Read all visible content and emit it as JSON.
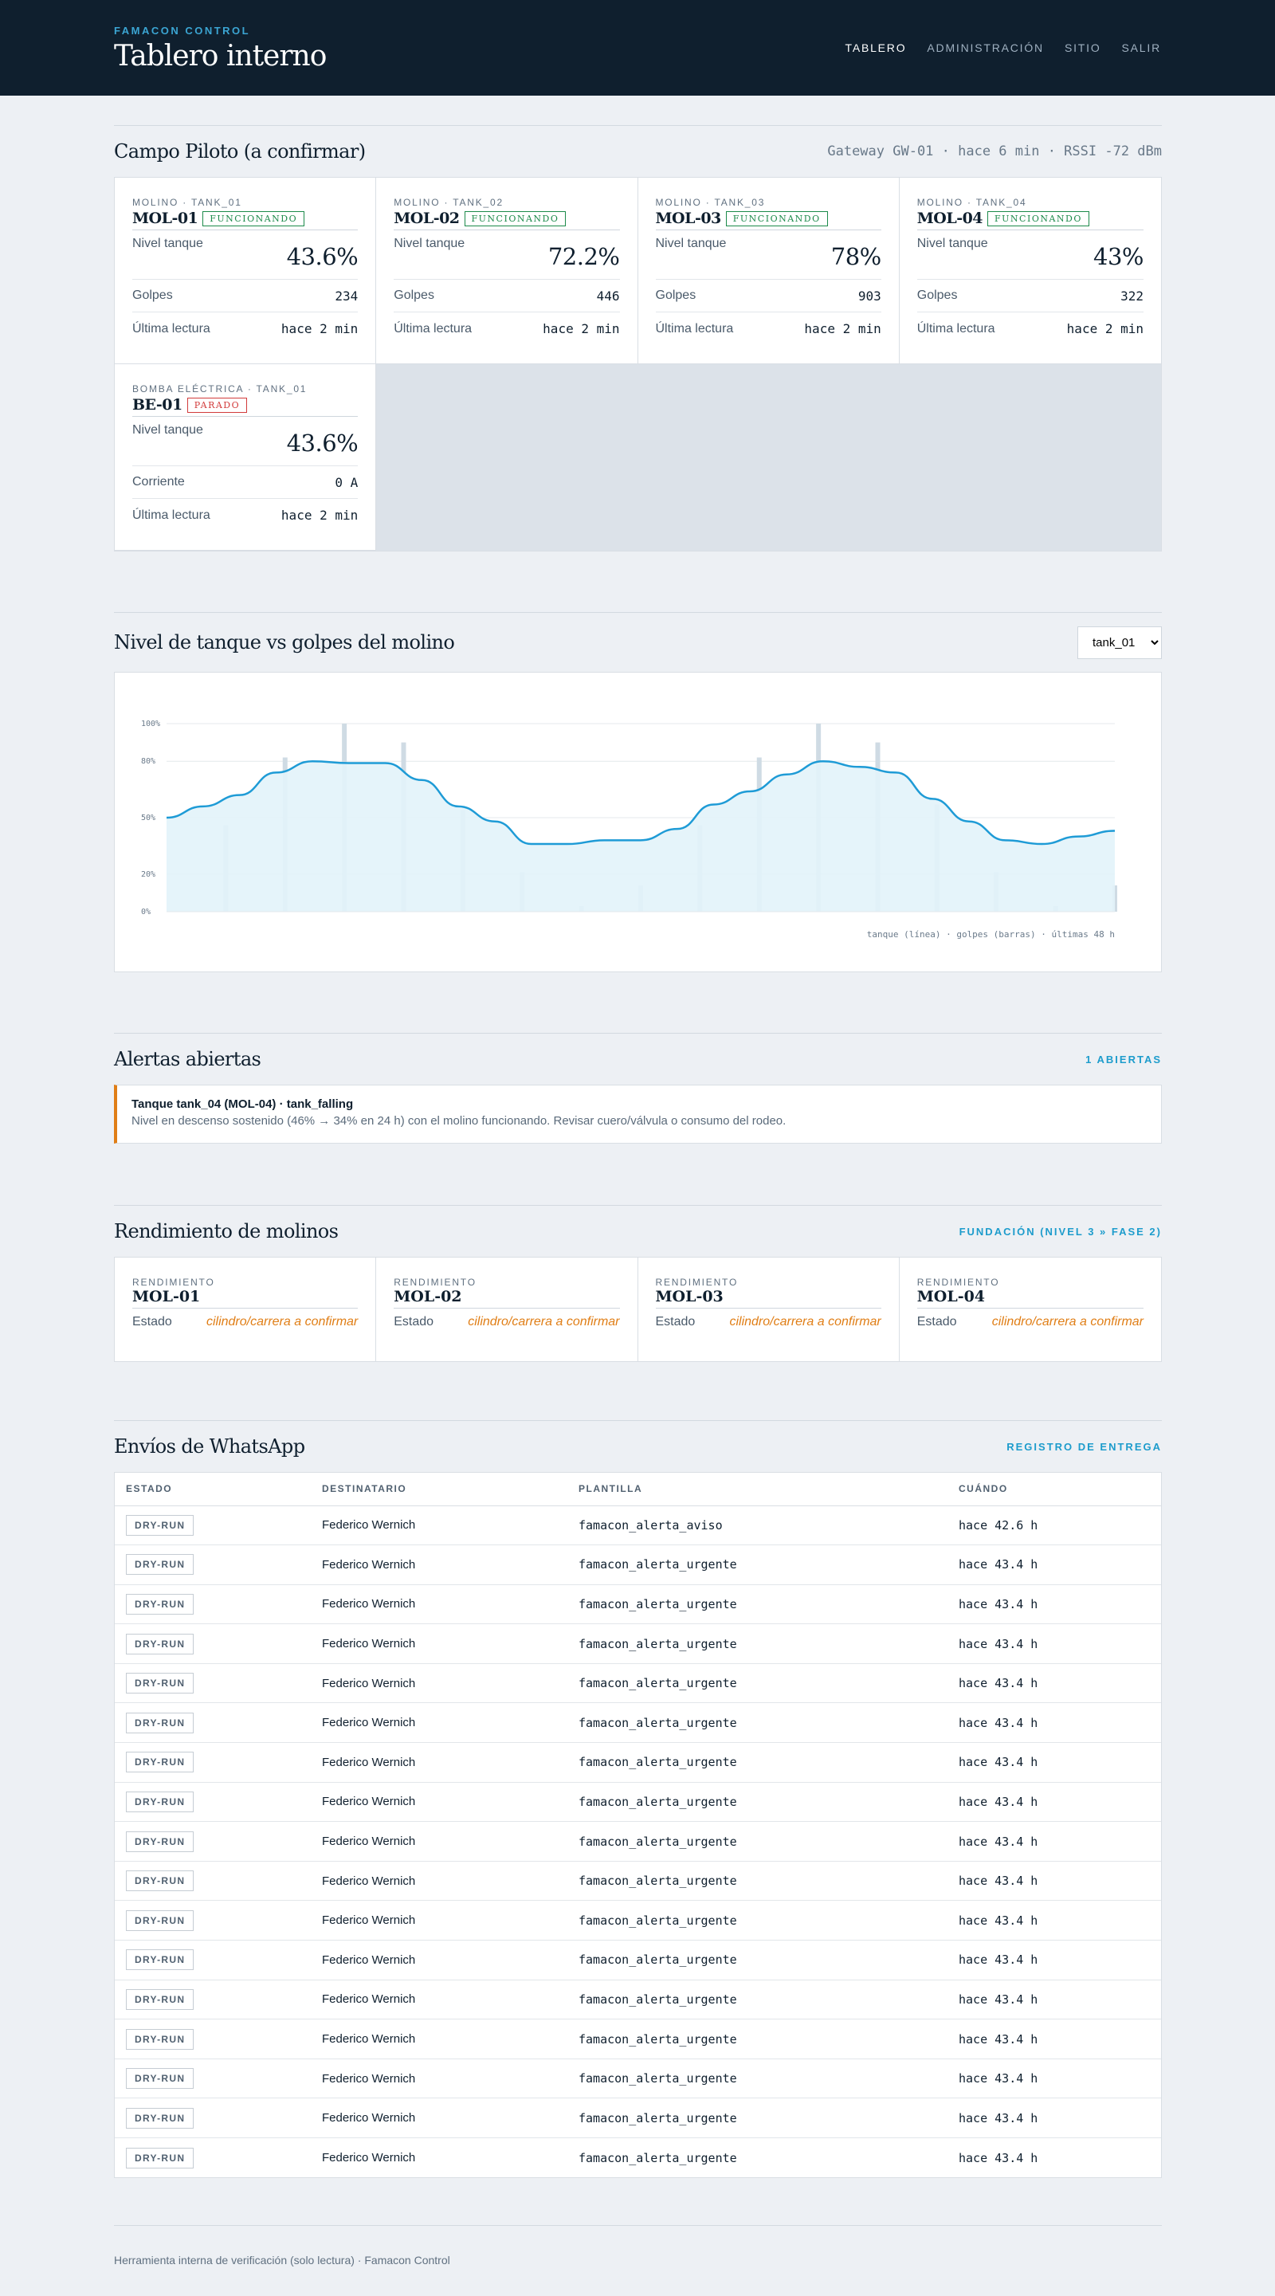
{
  "header": {
    "brand": "FAMACON CONTROL",
    "title": "Tablero interno",
    "nav": [
      {
        "label": "TABLERO"
      },
      {
        "label": "ADMINISTRACIÓN"
      },
      {
        "label": "SITIO"
      },
      {
        "label": "SALIR"
      }
    ]
  },
  "site": {
    "title": "Campo Piloto (a confirmar)",
    "gateway": "Gateway GW-01 · hace 6 min · RSSI -72 dBm"
  },
  "devices": [
    {
      "kind": "MOLINO · TANK_01",
      "name": "MOL-01",
      "status": "FUNCIONANDO",
      "level_label": "Nivel tanque",
      "level": "43.6%",
      "metric_label": "Golpes",
      "metric": "234",
      "last_label": "Última lectura",
      "last": "hace 2 min"
    },
    {
      "kind": "MOLINO · TANK_02",
      "name": "MOL-02",
      "status": "FUNCIONANDO",
      "level_label": "Nivel tanque",
      "level": "72.2%",
      "metric_label": "Golpes",
      "metric": "446",
      "last_label": "Última lectura",
      "last": "hace 2 min"
    },
    {
      "kind": "MOLINO · TANK_03",
      "name": "MOL-03",
      "status": "FUNCIONANDO",
      "level_label": "Nivel tanque",
      "level": "78%",
      "metric_label": "Golpes",
      "metric": "903",
      "last_label": "Última lectura",
      "last": "hace 2 min"
    },
    {
      "kind": "MOLINO · TANK_04",
      "name": "MOL-04",
      "status": "FUNCIONANDO",
      "level_label": "Nivel tanque",
      "level": "43%",
      "metric_label": "Golpes",
      "metric": "322",
      "last_label": "Última lectura",
      "last": "hace 2 min"
    },
    {
      "kind": "BOMBA ELÉCTRICA · TANK_01",
      "name": "BE-01",
      "status": "PARADO",
      "level_label": "Nivel tanque",
      "level": "43.6%",
      "metric_label": "Corriente",
      "metric": "0 A",
      "last_label": "Última lectura",
      "last": "hace 2 min"
    }
  ],
  "chart_section": {
    "title": "Nivel de tanque vs golpes del molino",
    "selected_tank": "tank_01"
  },
  "chart_data": {
    "type": "line",
    "y_ticks": [
      "100%",
      "80%",
      "50%",
      "20%",
      "0%"
    ],
    "ylim": [
      0,
      100
    ],
    "grid": true,
    "caption": "tanque (línea) · golpes (barras) · últimas 48 h",
    "colors": {
      "line": "#1e9bd6",
      "area": "#e2f3fa",
      "bars": "#cfdbe4"
    },
    "series": [
      {
        "type": "line",
        "values": [
          50,
          56,
          62,
          74,
          80,
          79,
          79,
          70,
          56,
          48,
          36,
          36,
          38,
          38,
          44,
          57,
          64,
          73,
          80,
          77,
          74,
          60,
          48,
          38,
          36,
          40,
          43
        ]
      },
      {
        "type": "bar",
        "values": [
          46,
          82,
          100,
          90,
          54,
          21,
          3,
          14,
          46,
          82,
          100,
          90,
          57,
          21,
          3,
          14
        ]
      }
    ]
  },
  "alerts": {
    "title": "Alertas abiertas",
    "count_label": "1 ABIERTAS",
    "items": [
      {
        "title": "Tanque tank_04 (MOL-04) · tank_falling",
        "detail": "Nivel en descenso sostenido (46% → 34% en 24 h) con el molino funcionando. Revisar cuero/válvula o consumo del rodeo."
      }
    ]
  },
  "performance": {
    "title": "Rendimiento de molinos",
    "link": "FUNDACIÓN (NIVEL 3 » FASE 2)",
    "items": [
      {
        "kind": "RENDIMIENTO",
        "name": "MOL-01",
        "label": "Estado",
        "value": "cilindro/carrera a confirmar"
      },
      {
        "kind": "RENDIMIENTO",
        "name": "MOL-02",
        "label": "Estado",
        "value": "cilindro/carrera a confirmar"
      },
      {
        "kind": "RENDIMIENTO",
        "name": "MOL-03",
        "label": "Estado",
        "value": "cilindro/carrera a confirmar"
      },
      {
        "kind": "RENDIMIENTO",
        "name": "MOL-04",
        "label": "Estado",
        "value": "cilindro/carrera a confirmar"
      }
    ]
  },
  "whatsapp": {
    "title": "Envíos de WhatsApp",
    "link": "REGISTRO DE ENTREGA",
    "columns": [
      "ESTADO",
      "DESTINATARIO",
      "PLANTILLA",
      "CUÁNDO"
    ],
    "rows": [
      {
        "estado": "DRY-RUN",
        "dest": "Federico Wernich",
        "tpl": "famacon_alerta_aviso",
        "when": "hace 42.6 h"
      },
      {
        "estado": "DRY-RUN",
        "dest": "Federico Wernich",
        "tpl": "famacon_alerta_urgente",
        "when": "hace 43.4 h"
      },
      {
        "estado": "DRY-RUN",
        "dest": "Federico Wernich",
        "tpl": "famacon_alerta_urgente",
        "when": "hace 43.4 h"
      },
      {
        "estado": "DRY-RUN",
        "dest": "Federico Wernich",
        "tpl": "famacon_alerta_urgente",
        "when": "hace 43.4 h"
      },
      {
        "estado": "DRY-RUN",
        "dest": "Federico Wernich",
        "tpl": "famacon_alerta_urgente",
        "when": "hace 43.4 h"
      },
      {
        "estado": "DRY-RUN",
        "dest": "Federico Wernich",
        "tpl": "famacon_alerta_urgente",
        "when": "hace 43.4 h"
      },
      {
        "estado": "DRY-RUN",
        "dest": "Federico Wernich",
        "tpl": "famacon_alerta_urgente",
        "when": "hace 43.4 h"
      },
      {
        "estado": "DRY-RUN",
        "dest": "Federico Wernich",
        "tpl": "famacon_alerta_urgente",
        "when": "hace 43.4 h"
      },
      {
        "estado": "DRY-RUN",
        "dest": "Federico Wernich",
        "tpl": "famacon_alerta_urgente",
        "when": "hace 43.4 h"
      },
      {
        "estado": "DRY-RUN",
        "dest": "Federico Wernich",
        "tpl": "famacon_alerta_urgente",
        "when": "hace 43.4 h"
      },
      {
        "estado": "DRY-RUN",
        "dest": "Federico Wernich",
        "tpl": "famacon_alerta_urgente",
        "when": "hace 43.4 h"
      },
      {
        "estado": "DRY-RUN",
        "dest": "Federico Wernich",
        "tpl": "famacon_alerta_urgente",
        "when": "hace 43.4 h"
      },
      {
        "estado": "DRY-RUN",
        "dest": "Federico Wernich",
        "tpl": "famacon_alerta_urgente",
        "when": "hace 43.4 h"
      },
      {
        "estado": "DRY-RUN",
        "dest": "Federico Wernich",
        "tpl": "famacon_alerta_urgente",
        "when": "hace 43.4 h"
      },
      {
        "estado": "DRY-RUN",
        "dest": "Federico Wernich",
        "tpl": "famacon_alerta_urgente",
        "when": "hace 43.4 h"
      },
      {
        "estado": "DRY-RUN",
        "dest": "Federico Wernich",
        "tpl": "famacon_alerta_urgente",
        "when": "hace 43.4 h"
      },
      {
        "estado": "DRY-RUN",
        "dest": "Federico Wernich",
        "tpl": "famacon_alerta_urgente",
        "when": "hace 43.4 h"
      }
    ]
  },
  "footer": {
    "text": "Herramienta interna de verificación (solo lectura) · Famacon Control"
  }
}
